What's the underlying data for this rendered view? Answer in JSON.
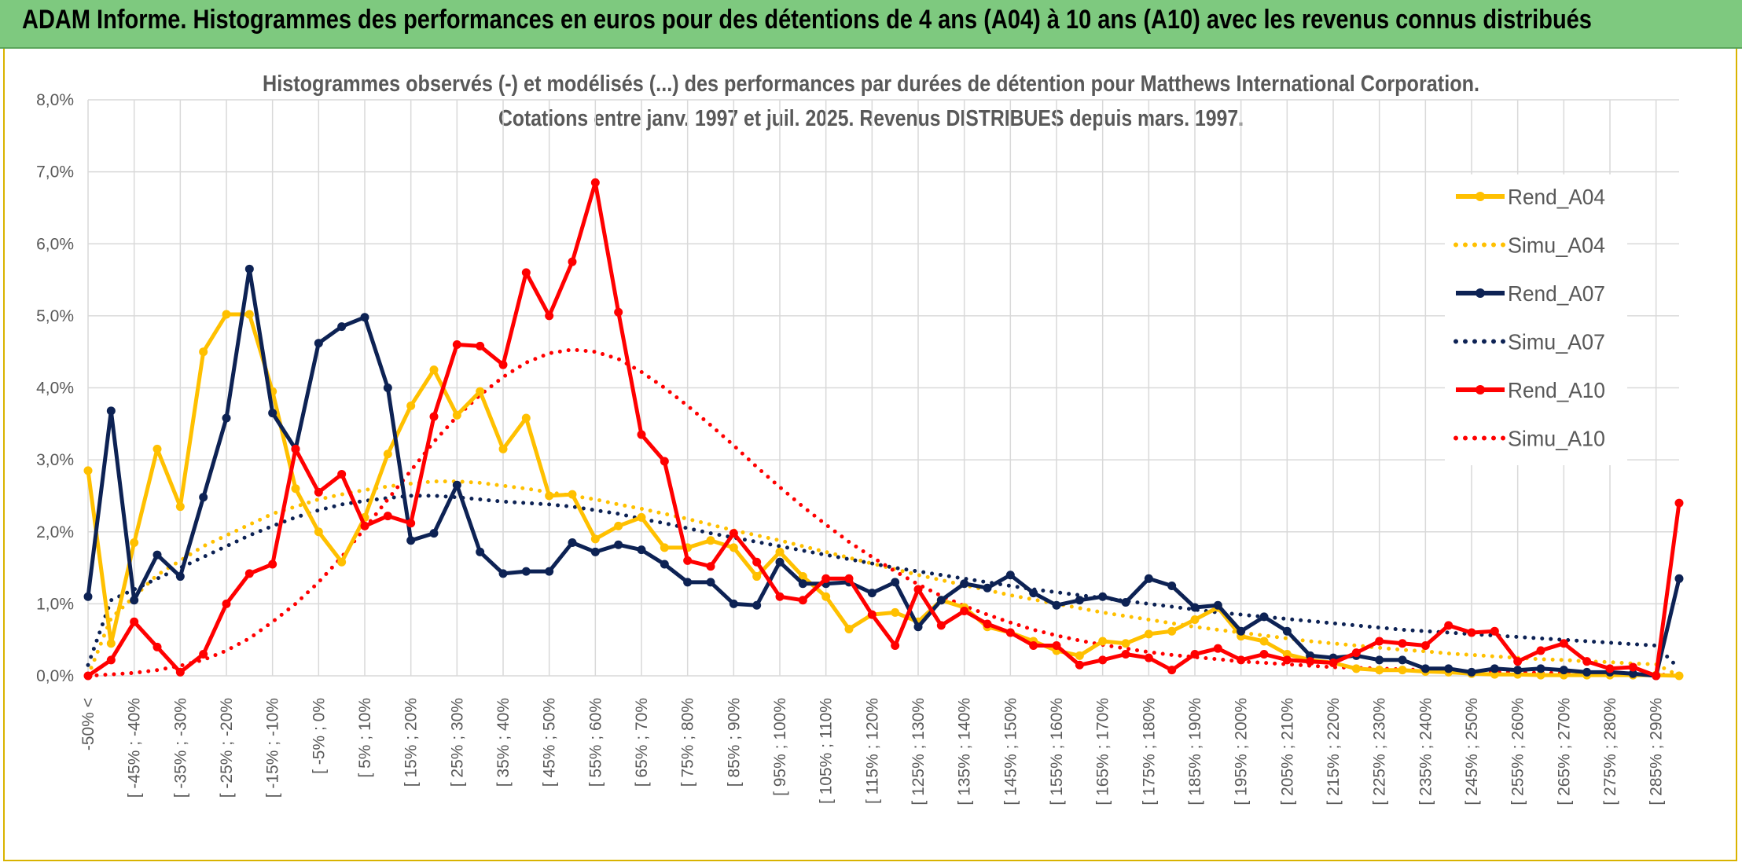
{
  "banner": {
    "title": "ADAM Informe. Histogrammes des performances en euros pour des détentions de 4 ans (A04) à 10 ans (A10) avec les revenus connus distribués"
  },
  "chart_data": {
    "type": "line",
    "title": "Histogrammes observés (-) et modélisés (...) des performances par durées de détention pour Matthews International Corporation.",
    "subtitle": "Cotations entre janv. 1997 et juil. 2025. Revenus DISTRIBUES depuis mars. 1997.",
    "ylim": [
      0,
      8
    ],
    "y_ticks": [
      "0,0%",
      "1,0%",
      "2,0%",
      "3,0%",
      "4,0%",
      "5,0%",
      "6,0%",
      "7,0%",
      "8,0%"
    ],
    "x_tick_labels": [
      "-50% <",
      "[ -45% ; -40%",
      "[ -35% ; -30%",
      "[ -25% ; -20%",
      "[ -15% ; -10%",
      "[ -5% ; 0%",
      "[ 5% ; 10%",
      "[ 15% ; 20%",
      "[ 25% ; 30%",
      "[ 35% ; 40%",
      "[ 45% ; 50%",
      "[ 55% ; 60%",
      "[ 65% ; 70%",
      "[ 75% ; 80%",
      "[ 85% ; 90%",
      "[ 95% ; 100%",
      "[ 105% ; 110%",
      "[ 115% ; 120%",
      "[ 125% ; 130%",
      "[ 135% ; 140%",
      "[ 145% ; 150%",
      "[ 155% ; 160%",
      "[ 165% ; 170%",
      "[ 175% ; 180%",
      "[ 185% ; 190%",
      "[ 195% ; 200%",
      "[ 205% ; 210%",
      "[ 215% ; 220%",
      "[ 225% ; 230%",
      "[ 235% ; 240%",
      "[ 245% ; 250%",
      "[ 255% ; 260%",
      "[ 265% ; 270%",
      "[ 275% ; 280%",
      "[ 285% ; 290%"
    ],
    "n_bins": 70,
    "grid": true,
    "legend_position": "right",
    "series": [
      {
        "name": "Rend_A04",
        "color": "#ffc000",
        "style": "solid",
        "markers": true,
        "values": [
          2.85,
          0.45,
          1.85,
          3.15,
          2.35,
          4.5,
          5.02,
          5.02,
          3.95,
          2.6,
          2.0,
          1.58,
          2.2,
          3.08,
          3.75,
          4.25,
          3.62,
          3.95,
          3.15,
          3.58,
          2.5,
          2.52,
          1.9,
          2.08,
          2.2,
          1.78,
          1.78,
          1.88,
          1.78,
          1.38,
          1.72,
          1.38,
          1.1,
          0.65,
          0.85,
          0.88,
          0.75,
          1.05,
          0.95,
          0.68,
          0.6,
          0.48,
          0.35,
          0.28,
          0.48,
          0.45,
          0.58,
          0.62,
          0.78,
          0.95,
          0.55,
          0.48,
          0.3,
          0.22,
          0.18,
          0.1,
          0.08,
          0.08,
          0.06,
          0.05,
          0.03,
          0.02,
          0.02,
          0.01,
          0.01,
          0.01,
          0.01,
          0.01,
          0.01,
          0.0
        ]
      },
      {
        "name": "Simu_A04",
        "color": "#ffc000",
        "style": "dotted",
        "markers": false,
        "values": [
          0.0,
          0.8,
          1.1,
          1.4,
          1.6,
          1.8,
          1.95,
          2.1,
          2.25,
          2.35,
          2.45,
          2.52,
          2.58,
          2.63,
          2.67,
          2.7,
          2.7,
          2.68,
          2.64,
          2.6,
          2.55,
          2.5,
          2.45,
          2.38,
          2.32,
          2.25,
          2.18,
          2.1,
          2.02,
          1.95,
          1.88,
          1.8,
          1.72,
          1.64,
          1.56,
          1.48,
          1.4,
          1.33,
          1.26,
          1.19,
          1.12,
          1.06,
          1.0,
          0.94,
          0.88,
          0.83,
          0.78,
          0.73,
          0.68,
          0.64,
          0.6,
          0.56,
          0.52,
          0.48,
          0.45,
          0.42,
          0.39,
          0.36,
          0.34,
          0.31,
          0.29,
          0.27,
          0.25,
          0.23,
          0.22,
          0.2,
          0.19,
          0.17,
          0.16,
          0.0
        ]
      },
      {
        "name": "Rend_A07",
        "color": "#0d2254",
        "style": "solid",
        "markers": true,
        "values": [
          1.1,
          3.68,
          1.05,
          1.68,
          1.38,
          2.48,
          3.58,
          5.65,
          3.65,
          3.15,
          4.62,
          4.85,
          4.98,
          4.0,
          1.88,
          1.98,
          2.65,
          1.72,
          1.42,
          1.45,
          1.45,
          1.85,
          1.72,
          1.82,
          1.75,
          1.55,
          1.3,
          1.3,
          1.0,
          0.98,
          1.58,
          1.28,
          1.28,
          1.3,
          1.15,
          1.3,
          0.68,
          1.05,
          1.28,
          1.22,
          1.4,
          1.15,
          0.98,
          1.05,
          1.1,
          1.02,
          1.35,
          1.25,
          0.95,
          0.98,
          0.62,
          0.82,
          0.62,
          0.28,
          0.25,
          0.28,
          0.22,
          0.22,
          0.1,
          0.1,
          0.05,
          0.1,
          0.08,
          0.1,
          0.08,
          0.05,
          0.05,
          0.03,
          0.0,
          1.35
        ]
      },
      {
        "name": "Simu_A07",
        "color": "#0d2254",
        "style": "dotted",
        "markers": false,
        "values": [
          0.15,
          1.05,
          1.2,
          1.35,
          1.5,
          1.65,
          1.8,
          1.95,
          2.08,
          2.2,
          2.3,
          2.38,
          2.43,
          2.47,
          2.5,
          2.5,
          2.48,
          2.45,
          2.42,
          2.4,
          2.38,
          2.35,
          2.3,
          2.25,
          2.18,
          2.12,
          2.05,
          1.98,
          1.92,
          1.86,
          1.8,
          1.74,
          1.68,
          1.62,
          1.56,
          1.5,
          1.45,
          1.4,
          1.35,
          1.3,
          1.25,
          1.2,
          1.16,
          1.12,
          1.08,
          1.04,
          1.0,
          0.96,
          0.92,
          0.88,
          0.85,
          0.82,
          0.79,
          0.76,
          0.73,
          0.7,
          0.67,
          0.64,
          0.62,
          0.6,
          0.58,
          0.56,
          0.54,
          0.52,
          0.5,
          0.48,
          0.46,
          0.44,
          0.42,
          0.1
        ]
      },
      {
        "name": "Rend_A10",
        "color": "#ff0000",
        "style": "solid",
        "markers": true,
        "values": [
          0.0,
          0.22,
          0.75,
          0.4,
          0.05,
          0.3,
          1.0,
          1.42,
          1.55,
          3.15,
          2.55,
          2.8,
          2.08,
          2.22,
          2.12,
          3.6,
          4.6,
          4.58,
          4.32,
          5.6,
          5.0,
          5.75,
          6.85,
          5.05,
          3.35,
          2.98,
          1.6,
          1.52,
          1.98,
          1.58,
          1.1,
          1.05,
          1.35,
          1.35,
          0.85,
          0.42,
          1.2,
          0.7,
          0.9,
          0.72,
          0.6,
          0.42,
          0.42,
          0.15,
          0.22,
          0.3,
          0.25,
          0.08,
          0.3,
          0.38,
          0.22,
          0.3,
          0.22,
          0.2,
          0.18,
          0.32,
          0.48,
          0.45,
          0.42,
          0.7,
          0.6,
          0.62,
          0.2,
          0.35,
          0.45,
          0.2,
          0.1,
          0.12,
          0.0,
          2.4
        ]
      },
      {
        "name": "Simu_A10",
        "color": "#ff0000",
        "style": "dotted",
        "markers": false,
        "values": [
          0.0,
          0.02,
          0.04,
          0.08,
          0.14,
          0.22,
          0.35,
          0.52,
          0.75,
          1.0,
          1.3,
          1.65,
          2.05,
          2.45,
          2.85,
          3.25,
          3.6,
          3.9,
          4.15,
          4.35,
          4.48,
          4.53,
          4.5,
          4.4,
          4.22,
          4.0,
          3.75,
          3.48,
          3.2,
          2.9,
          2.62,
          2.35,
          2.1,
          1.86,
          1.65,
          1.45,
          1.27,
          1.11,
          0.97,
          0.85,
          0.74,
          0.64,
          0.56,
          0.49,
          0.43,
          0.38,
          0.33,
          0.29,
          0.26,
          0.23,
          0.2,
          0.18,
          0.16,
          0.14,
          0.12,
          0.11,
          0.1,
          0.09,
          0.08,
          0.07,
          0.06,
          0.05,
          0.05,
          0.04,
          0.04,
          0.03,
          0.03,
          0.02,
          0.02,
          0.0
        ]
      }
    ]
  }
}
